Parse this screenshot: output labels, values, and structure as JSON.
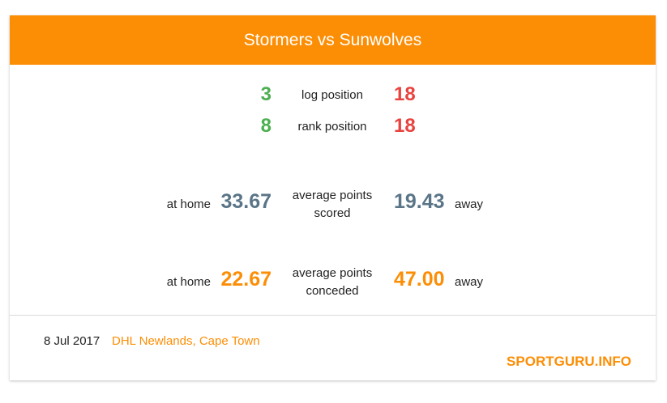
{
  "header": {
    "title": "Stormers vs Sunwolves"
  },
  "log": {
    "home": "3",
    "label": "log position",
    "away": "18"
  },
  "rank": {
    "home": "8",
    "label": "rank position",
    "away": "18"
  },
  "scored": {
    "home_prefix": "at home",
    "home": "33.67",
    "label_line1": "average points",
    "label_line2": "scored",
    "away": "19.43",
    "away_suffix": "away"
  },
  "conceded": {
    "home_prefix": "at home",
    "home": "22.67",
    "label_line1": "average points",
    "label_line2": "conceded",
    "away": "47.00",
    "away_suffix": "away"
  },
  "footer": {
    "date": "8 Jul 2017",
    "venue": "DHL Newlands, Cape Town",
    "brand": "SPORTGURU.INFO"
  },
  "colors": {
    "header": "#fc8e06",
    "good": "#4caf50",
    "bad": "#e8433f",
    "scored": "#5a7587",
    "conceded": "#fc8e06"
  }
}
